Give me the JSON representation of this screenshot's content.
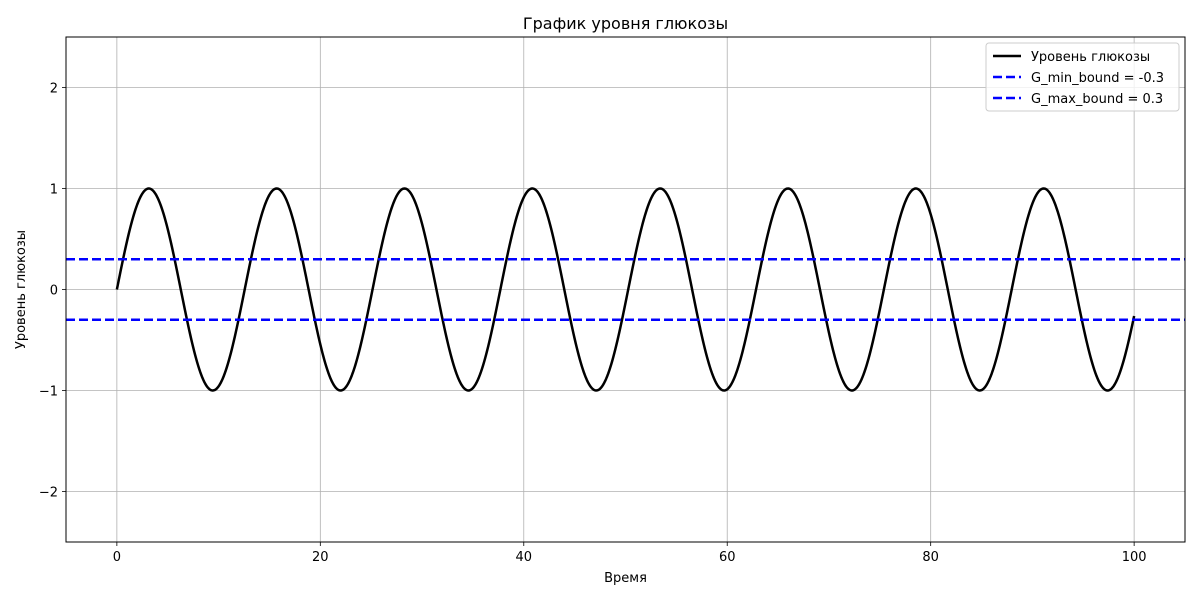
{
  "chart_data": {
    "type": "line",
    "title": "График уровня глюкозы",
    "xlabel": "Время",
    "ylabel": "Уровень глюкозы",
    "xlim": [
      -5,
      105
    ],
    "ylim": [
      -2.5,
      2.5
    ],
    "xticks": [
      0,
      20,
      40,
      60,
      80,
      100
    ],
    "yticks": [
      -2,
      -1,
      0,
      1,
      2
    ],
    "xtick_labels": [
      "0",
      "20",
      "40",
      "60",
      "80",
      "100"
    ],
    "ytick_labels": [
      "−2",
      "−1",
      "0",
      "1",
      "2"
    ],
    "grid": true,
    "legend_position": "top-right",
    "series": [
      {
        "name": "Уровень глюкозы",
        "kind": "line",
        "function": "sin(0.5*x)",
        "x_range": [
          0,
          100
        ],
        "color": "#000000",
        "style": "solid"
      },
      {
        "name": "G_min_bound = -0.3",
        "kind": "hline",
        "y": -0.3,
        "color": "#0000ff",
        "style": "dashed"
      },
      {
        "name": "G_max_bound = 0.3",
        "kind": "hline",
        "y": 0.3,
        "color": "#0000ff",
        "style": "dashed"
      }
    ]
  }
}
